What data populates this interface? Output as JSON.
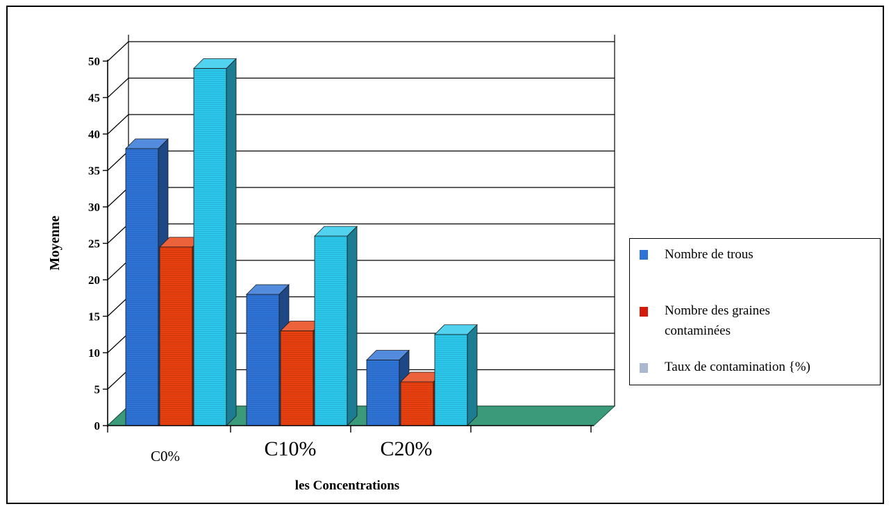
{
  "chart_data": {
    "type": "bar",
    "title": "",
    "xlabel": "les Concentrations",
    "ylabel": "Moyenne",
    "categories": [
      "C0%",
      "C10%",
      "C20%"
    ],
    "ylim": [
      0,
      50
    ],
    "yticks": [
      "0",
      "5",
      "10",
      "15",
      "20",
      "25",
      "30",
      "35",
      "40",
      "45",
      "50"
    ],
    "grid": true,
    "legend_position": "right",
    "series": [
      {
        "name": "Nombre de trous",
        "values": [
          38,
          18,
          9
        ],
        "color": "#2e73d6"
      },
      {
        "name": "Nombre des graines contaminées",
        "values": [
          24.5,
          13,
          6
        ],
        "color": "#e8400f"
      },
      {
        "name": "Taux de contamination {%)",
        "values": [
          49,
          26,
          12.5
        ],
        "color": "#2bc8ec"
      }
    ]
  },
  "legend": {
    "items": [
      {
        "label": "Nombre de trous",
        "color": "#2e73d6"
      },
      {
        "label": "Nombre des graines contaminées",
        "color": "#d41a0a"
      },
      {
        "label": "Taux de contamination {%)",
        "color": "#a9b8cc"
      }
    ]
  }
}
